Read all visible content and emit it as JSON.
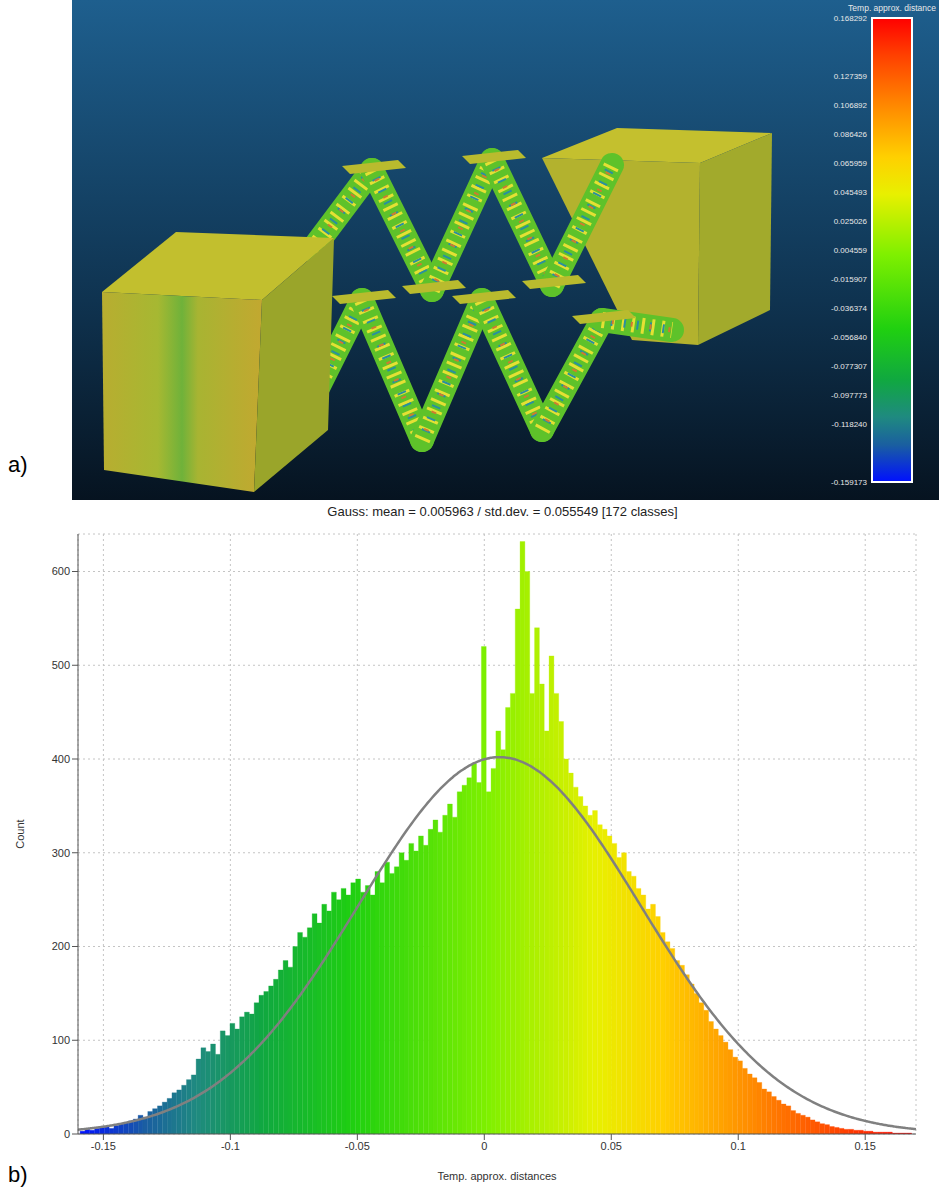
{
  "panel_labels": [
    "a)",
    "b)"
  ],
  "panel_a": {
    "type": "render",
    "colorbar": {
      "title": "Temp. approx. distance",
      "range": [
        -0.159173,
        0.168292
      ],
      "ticks": [
        0.168292,
        0.127359,
        0.106892,
        0.086426,
        0.065959,
        0.045493,
        0.025026,
        0.004559,
        -0.015907,
        -0.036374,
        {
          "value": -0.05684,
          "label": "-0.056840"
        },
        -0.077307,
        -0.097773,
        {
          "value": -0.11824,
          "label": "-0.118240"
        },
        -0.159173
      ]
    }
  },
  "chart_data": {
    "type": "histogram",
    "title": "Gauss: mean = 0.005963 / std.dev. = 0.055549 [172 classes]",
    "x_label": "Temp. approx. distances",
    "y_label": "Count",
    "bins": [
      -0.15917,
      -0.15727,
      -0.15537,
      -0.15346,
      -0.15156,
      -0.14965,
      -0.14775,
      -0.14585,
      -0.14394,
      -0.14204,
      -0.14013,
      -0.13823,
      -0.13633,
      -0.13442,
      -0.13252,
      -0.13062,
      -0.12871,
      -0.12681,
      -0.1249,
      -0.123,
      -0.1211,
      -0.11919,
      -0.11729,
      -0.11538,
      -0.11348,
      -0.11158,
      -0.10967,
      -0.10777,
      -0.10587,
      -0.10396,
      -0.10206,
      -0.10015,
      -0.09825,
      -0.09635,
      -0.09444,
      -0.09254,
      -0.09063,
      -0.08873,
      -0.08683,
      -0.08492,
      -0.08302,
      -0.08111,
      -0.07921,
      -0.07731,
      -0.0754,
      -0.0735,
      -0.0716,
      -0.06969,
      -0.06779,
      -0.06588,
      -0.06398,
      -0.06208,
      -0.06017,
      -0.05827,
      -0.05637,
      -0.05446,
      -0.05256,
      -0.05065,
      -0.04875,
      -0.04685,
      -0.04494,
      -0.04304,
      -0.04113,
      -0.03923,
      -0.03733,
      -0.03542,
      -0.03352,
      -0.03161,
      -0.02971,
      -0.02781,
      -0.0259,
      -0.024,
      -0.02209,
      -0.02019,
      -0.01829,
      -0.01638,
      -0.01448,
      -0.01258,
      -0.01067,
      -0.00877,
      -0.00686,
      -0.00496,
      -0.00306,
      -0.00115,
      0.00075,
      0.00266,
      0.00456,
      0.00646,
      0.00837,
      0.01027,
      0.01218,
      0.01408,
      0.01598,
      0.01789,
      0.01979,
      0.02169,
      0.0236,
      0.0255,
      0.02741,
      0.02931,
      0.03121,
      0.03312,
      0.03502,
      0.03693,
      0.03883,
      0.04073,
      0.04264,
      0.04454,
      0.04645,
      0.04835,
      0.05025,
      0.05216,
      0.05406,
      0.05597,
      0.05787,
      0.05977,
      0.06168,
      0.06358,
      0.06548,
      0.06739,
      0.06929,
      0.0712,
      0.0731,
      0.075,
      0.07691,
      0.07881,
      0.08072,
      0.08262,
      0.08452,
      0.08643,
      0.08833,
      0.09023,
      0.09214,
      0.09404,
      0.09595,
      0.09785,
      0.09975,
      0.10166,
      0.10356,
      0.10547,
      0.10737,
      0.10927,
      0.11118,
      0.11308,
      0.11498,
      0.11689,
      0.11879,
      0.1207,
      0.1226,
      0.1245,
      0.12641,
      0.12831,
      0.13021,
      0.13212,
      0.13402,
      0.13593,
      0.13783,
      0.13973,
      0.14164,
      0.14354,
      0.14545,
      0.14735,
      0.14925,
      0.15116,
      0.15306,
      0.15497,
      0.15687,
      0.15877,
      0.16068,
      0.16258,
      0.16449,
      0.16639,
      0.168292
    ],
    "counts": [
      3,
      5,
      4,
      6,
      7,
      8,
      6,
      9,
      11,
      12,
      14,
      16,
      20,
      18,
      24,
      27,
      30,
      34,
      38,
      44,
      47,
      52,
      58,
      63,
      80,
      92,
      88,
      96,
      85,
      110,
      105,
      118,
      112,
      125,
      130,
      128,
      140,
      148,
      152,
      158,
      165,
      175,
      185,
      178,
      200,
      215,
      210,
      220,
      235,
      225,
      245,
      238,
      258,
      250,
      262,
      255,
      268,
      272,
      258,
      265,
      255,
      280,
      268,
      290,
      278,
      285,
      300,
      292,
      310,
      302,
      318,
      308,
      325,
      335,
      322,
      340,
      352,
      338,
      365,
      372,
      380,
      395,
      375,
      520,
      365,
      390,
      430,
      410,
      455,
      470,
      560,
      632,
      600,
      470,
      540,
      480,
      430,
      510,
      470,
      440,
      400,
      385,
      370,
      360,
      350,
      340,
      345,
      330,
      325,
      318,
      310,
      295,
      300,
      280,
      275,
      262,
      255,
      240,
      245,
      232,
      215,
      205,
      198,
      185,
      180,
      170,
      160,
      150,
      140,
      132,
      120,
      112,
      105,
      98,
      90,
      82,
      78,
      70,
      64,
      60,
      55,
      48,
      45,
      40,
      36,
      32,
      30,
      25,
      22,
      20,
      18,
      15,
      13,
      11,
      10,
      8,
      7,
      6,
      5,
      5,
      4,
      4,
      3,
      3,
      2,
      2,
      2,
      2,
      1,
      1,
      1,
      1
    ],
    "fit": {
      "mean": 0.005963,
      "std_dev": 0.055549,
      "peak": 402,
      "color": "#808080"
    },
    "xlim": [
      -0.16,
      0.17
    ],
    "xticks": [
      -0.15,
      -0.1,
      -0.05,
      0,
      0.05,
      0.1,
      0.15
    ],
    "ylim": [
      0,
      640
    ],
    "yticks": [
      0,
      100,
      200,
      300,
      400,
      500,
      600
    ],
    "grid": true
  }
}
